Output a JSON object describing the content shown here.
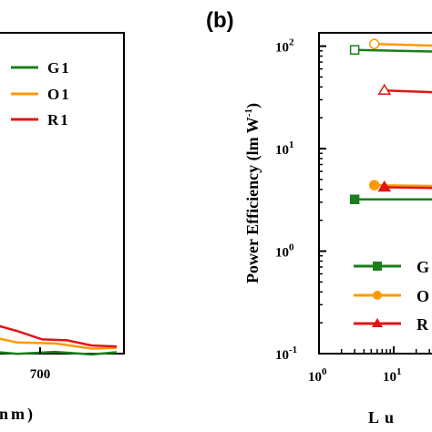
{
  "chart_data": [
    {
      "type": "line",
      "panel": "",
      "xlabel": "(nm)",
      "x_ticks": [
        "700"
      ],
      "xlim": [
        625,
        750
      ],
      "ylim": [
        0,
        1.05
      ],
      "legend": "top-right",
      "series": [
        {
          "name": "G1",
          "color": "#1a7f1a",
          "x": [
            625,
            640,
            655,
            670,
            685,
            700,
            715,
            730,
            740
          ],
          "y": [
            0.06,
            0.035,
            0.02,
            0.012,
            0.006,
            0.003,
            0.002,
            0.001,
            0.001
          ]
        },
        {
          "name": "O1",
          "color": "#ff9900",
          "x": [
            625,
            640,
            650,
            660,
            670,
            680,
            690,
            700,
            715,
            730,
            740
          ],
          "y": [
            0.27,
            0.19,
            0.15,
            0.115,
            0.085,
            0.065,
            0.05,
            0.04,
            0.03,
            0.02,
            0.015
          ]
        },
        {
          "name": "R1",
          "color": "#e01515",
          "x": [
            625,
            630,
            640,
            650,
            660,
            670,
            680,
            690,
            700,
            710,
            720,
            730,
            740
          ],
          "y": [
            0.62,
            0.55,
            0.45,
            0.37,
            0.28,
            0.2,
            0.14,
            0.1,
            0.07,
            0.05,
            0.04,
            0.03,
            0.02
          ]
        }
      ]
    },
    {
      "type": "line",
      "panel": "(b)",
      "ylabel": "Power Efficiency (lm W",
      "ylabel_sup": "-1",
      "ylabel_close": ")",
      "xlabel": "Lu",
      "yscale": "log",
      "ylim": [
        0.1,
        100
      ],
      "y_ticks": [
        {
          "base": "10",
          "exp": "2",
          "value": 100
        },
        {
          "base": "10",
          "exp": "1",
          "value": 10
        },
        {
          "base": "10",
          "exp": "0",
          "value": 1
        },
        {
          "base": "10",
          "exp": "-1",
          "value": 0.1
        }
      ],
      "xscale": "log",
      "xlim": [
        1,
        60
      ],
      "x_ticks": [
        {
          "base": "10",
          "exp": "0",
          "value": 1
        },
        {
          "base": "10",
          "exp": "1",
          "value": 10
        }
      ],
      "legend": "bottom-right",
      "series": [
        {
          "name": "G",
          "color": "#1a7f1a",
          "marker": "square",
          "filled": true,
          "x": [
            3,
            60
          ],
          "y": [
            3.2,
            3.2
          ]
        },
        {
          "name": "O",
          "color": "#ff9900",
          "marker": "circle",
          "filled": true,
          "x": [
            5.5,
            60
          ],
          "y": [
            4.4,
            4.3
          ]
        },
        {
          "name": "R",
          "color": "#e01515",
          "marker": "triangle",
          "filled": true,
          "x": [
            7.5,
            60
          ],
          "y": [
            4.2,
            4.1
          ]
        },
        {
          "name": "",
          "color": "#1a7f1a",
          "marker": "square",
          "filled": false,
          "x": [
            3,
            60
          ],
          "y": [
            92,
            88
          ]
        },
        {
          "name": "",
          "color": "#ff9900",
          "marker": "circle",
          "filled": false,
          "x": [
            5.5,
            60
          ],
          "y": [
            105,
            100
          ]
        },
        {
          "name": "",
          "color": "#e01515",
          "marker": "triangle",
          "filled": false,
          "x": [
            7.5,
            60
          ],
          "y": [
            37,
            35
          ]
        }
      ]
    }
  ]
}
